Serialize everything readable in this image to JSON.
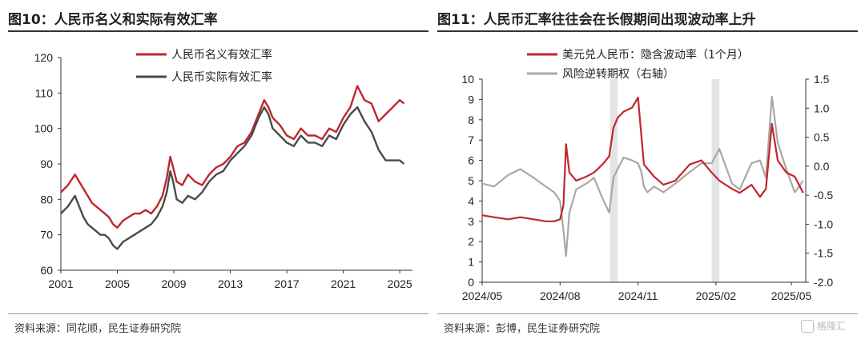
{
  "left": {
    "title": "图10：人民币名义和实际有效汇率",
    "source": "资料来源：同花顺，民生证券研究院",
    "chart_data": {
      "type": "line",
      "xlim": [
        2001,
        2025.9
      ],
      "ylim": [
        60,
        120
      ],
      "xticks": [
        2001,
        2005,
        2009,
        2013,
        2017,
        2021,
        2025
      ],
      "yticks": [
        60,
        70,
        80,
        90,
        100,
        110,
        120
      ],
      "legend": "top",
      "series": [
        {
          "name": "人民币名义有效汇率",
          "color": "#c0262d",
          "x": [
            2001,
            2001.5,
            2002,
            2002.3,
            2002.6,
            2002.9,
            2003.2,
            2003.5,
            2003.8,
            2004.1,
            2004.4,
            2004.7,
            2005,
            2005.4,
            2005.8,
            2006.2,
            2006.6,
            2007,
            2007.4,
            2007.8,
            2008.2,
            2008.5,
            2008.75,
            2008.95,
            2009.2,
            2009.6,
            2010,
            2010.5,
            2011,
            2011.5,
            2012,
            2012.5,
            2013,
            2013.5,
            2014,
            2014.5,
            2015,
            2015.4,
            2015.7,
            2016,
            2016.5,
            2017,
            2017.5,
            2018,
            2018.5,
            2019,
            2019.5,
            2020,
            2020.5,
            2021,
            2021.5,
            2022,
            2022.5,
            2023,
            2023.5,
            2024,
            2024.5,
            2025,
            2025.3
          ],
          "values": [
            82,
            84,
            87,
            85,
            83,
            81,
            79,
            78,
            77,
            76,
            75,
            73,
            72,
            74,
            75,
            76,
            76,
            77,
            76,
            78,
            81,
            86,
            92,
            89,
            85,
            84,
            87,
            85,
            84,
            87,
            89,
            90,
            92,
            95,
            96,
            99,
            104,
            108,
            106,
            103,
            101,
            98,
            97,
            100,
            98,
            98,
            97,
            100,
            99,
            103,
            106,
            112,
            108,
            107,
            102,
            104,
            106,
            108,
            107
          ]
        },
        {
          "name": "人民币实际有效汇率",
          "color": "#4a4a4a",
          "x": [
            2001,
            2001.5,
            2002,
            2002.3,
            2002.6,
            2002.9,
            2003.2,
            2003.5,
            2003.8,
            2004.1,
            2004.4,
            2004.7,
            2005,
            2005.4,
            2005.8,
            2006.2,
            2006.6,
            2007,
            2007.4,
            2007.8,
            2008.2,
            2008.5,
            2008.75,
            2008.95,
            2009.2,
            2009.6,
            2010,
            2010.5,
            2011,
            2011.5,
            2012,
            2012.5,
            2013,
            2013.5,
            2014,
            2014.5,
            2015,
            2015.4,
            2015.7,
            2016,
            2016.5,
            2017,
            2017.5,
            2018,
            2018.5,
            2019,
            2019.5,
            2020,
            2020.5,
            2021,
            2021.5,
            2022,
            2022.5,
            2023,
            2023.5,
            2024,
            2024.5,
            2025,
            2025.3
          ],
          "values": [
            76,
            78,
            81,
            78,
            75,
            73,
            72,
            71,
            70,
            70,
            69,
            67,
            66,
            68,
            69,
            70,
            71,
            72,
            73,
            75,
            78,
            82,
            88,
            85,
            80,
            79,
            81,
            80,
            82,
            85,
            87,
            88,
            91,
            93,
            95,
            98,
            103,
            106,
            104,
            100,
            98,
            96,
            95,
            98,
            96,
            96,
            95,
            98,
            97,
            101,
            104,
            106,
            102,
            99,
            94,
            91,
            91,
            91,
            90
          ]
        }
      ]
    }
  },
  "right": {
    "title": "图11：人民币汇率往往会在长假期间出现波动率上升",
    "source": "资料来源：彭博，民生证券研究院",
    "watermark": "格隆汇",
    "chart_data": {
      "type": "line",
      "x_type": "date",
      "xlim": [
        "2024-05-01",
        "2025-05-18"
      ],
      "xticks": [
        "2024/05",
        "2024/08",
        "2024/11",
        "2025/02",
        "2025/05"
      ],
      "xtick_dates": [
        "2024-05-01",
        "2024-08-01",
        "2024-11-01",
        "2025-02-01",
        "2025-05-01"
      ],
      "ylim_left": [
        0,
        10
      ],
      "yticks_left": [
        0,
        1,
        2,
        3,
        4,
        5,
        6,
        7,
        8,
        9,
        10
      ],
      "ylim_right": [
        -2.0,
        1.5
      ],
      "yticks_right": [
        "1.5",
        "1.0",
        "0.5",
        "0.0",
        "-0.5",
        "-1.0",
        "-1.5",
        "-2.0"
      ],
      "shaded_periods": [
        [
          "2024-09-29",
          "2024-10-08"
        ],
        [
          "2025-01-27",
          "2025-02-05"
        ]
      ],
      "legend": "top-left",
      "series": [
        {
          "name": "美元兑人民币：隐含波动率（1个月）",
          "axis": "left",
          "color": "#c0262d",
          "x": [
            "2024-05-01",
            "2024-05-15",
            "2024-06-01",
            "2024-06-15",
            "2024-07-01",
            "2024-07-15",
            "2024-07-25",
            "2024-08-01",
            "2024-08-05",
            "2024-08-08",
            "2024-08-12",
            "2024-08-20",
            "2024-09-01",
            "2024-09-10",
            "2024-09-20",
            "2024-09-28",
            "2024-10-03",
            "2024-10-08",
            "2024-10-15",
            "2024-10-25",
            "2024-11-01",
            "2024-11-05",
            "2024-11-08",
            "2024-11-12",
            "2024-11-20",
            "2024-12-01",
            "2024-12-15",
            "2025-01-01",
            "2025-01-15",
            "2025-01-27",
            "2025-02-05",
            "2025-02-20",
            "2025-03-01",
            "2025-03-15",
            "2025-03-25",
            "2025-04-01",
            "2025-04-08",
            "2025-04-15",
            "2025-04-25",
            "2025-05-05",
            "2025-05-15"
          ],
          "values": [
            3.3,
            3.2,
            3.1,
            3.2,
            3.1,
            3.0,
            3.0,
            3.1,
            3.8,
            6.8,
            5.4,
            5.0,
            5.2,
            5.4,
            5.8,
            6.2,
            7.6,
            8.1,
            8.4,
            8.6,
            9.1,
            7.2,
            5.8,
            5.6,
            5.2,
            4.8,
            5.0,
            5.8,
            6.0,
            5.4,
            5.0,
            4.6,
            4.4,
            4.8,
            4.2,
            4.6,
            7.8,
            6.0,
            5.4,
            5.2,
            4.4
          ]
        },
        {
          "name": "风险逆转期权（右轴）",
          "axis": "right",
          "color": "#a8a8a8",
          "x": [
            "2024-05-01",
            "2024-05-15",
            "2024-06-01",
            "2024-06-15",
            "2024-07-01",
            "2024-07-15",
            "2024-07-25",
            "2024-08-01",
            "2024-08-05",
            "2024-08-08",
            "2024-08-12",
            "2024-08-20",
            "2024-09-01",
            "2024-09-10",
            "2024-09-20",
            "2024-09-28",
            "2024-10-03",
            "2024-10-08",
            "2024-10-15",
            "2024-10-25",
            "2024-11-01",
            "2024-11-05",
            "2024-11-08",
            "2024-11-12",
            "2024-11-20",
            "2024-12-01",
            "2024-12-15",
            "2025-01-01",
            "2025-01-15",
            "2025-01-27",
            "2025-02-05",
            "2025-02-20",
            "2025-03-01",
            "2025-03-15",
            "2025-03-25",
            "2025-04-01",
            "2025-04-08",
            "2025-04-15",
            "2025-04-25",
            "2025-05-05",
            "2025-05-15"
          ],
          "values": [
            -0.3,
            -0.35,
            -0.15,
            -0.05,
            -0.2,
            -0.35,
            -0.45,
            -0.6,
            -1.1,
            -1.55,
            -0.8,
            -0.4,
            -0.3,
            -0.2,
            -0.55,
            -0.8,
            -0.2,
            -0.05,
            0.15,
            0.1,
            0.05,
            -0.1,
            -0.35,
            -0.45,
            -0.35,
            -0.45,
            -0.3,
            -0.1,
            0.05,
            0.05,
            0.3,
            -0.3,
            -0.4,
            0.05,
            0.1,
            -0.2,
            1.2,
            0.4,
            -0.05,
            -0.45,
            -0.25
          ]
        }
      ]
    }
  }
}
